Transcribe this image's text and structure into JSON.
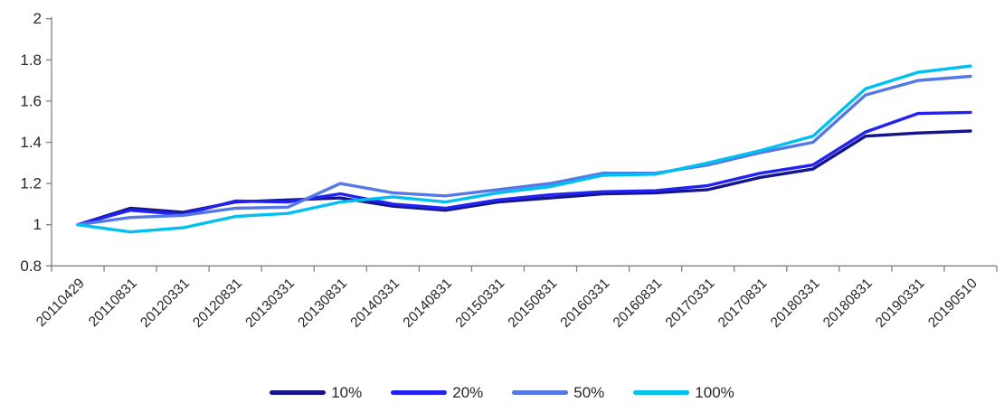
{
  "chart_data": {
    "type": "line",
    "title": "",
    "xlabel": "",
    "ylabel": "",
    "categories": [
      "20110429",
      "20110831",
      "20120331",
      "20120831",
      "20130331",
      "20130831",
      "20140331",
      "20140831",
      "20150331",
      "20150831",
      "20160331",
      "20160831",
      "20170331",
      "20170831",
      "20180331",
      "20180831",
      "20190331",
      "20190510"
    ],
    "series": [
      {
        "name": "10%",
        "color": "#14148B",
        "values": [
          1.0,
          1.08,
          1.06,
          1.11,
          1.12,
          1.13,
          1.09,
          1.07,
          1.11,
          1.13,
          1.15,
          1.155,
          1.17,
          1.23,
          1.27,
          1.43,
          1.445,
          1.455
        ]
      },
      {
        "name": "20%",
        "color": "#2222F0",
        "values": [
          1.0,
          1.07,
          1.05,
          1.115,
          1.11,
          1.15,
          1.1,
          1.08,
          1.12,
          1.145,
          1.16,
          1.165,
          1.19,
          1.25,
          1.29,
          1.45,
          1.54,
          1.545
        ]
      },
      {
        "name": "50%",
        "color": "#5578E6",
        "values": [
          1.0,
          1.035,
          1.045,
          1.08,
          1.085,
          1.2,
          1.155,
          1.14,
          1.17,
          1.2,
          1.25,
          1.25,
          1.29,
          1.35,
          1.4,
          1.63,
          1.7,
          1.72
        ]
      },
      {
        "name": "100%",
        "color": "#00C0F0",
        "values": [
          1.0,
          0.965,
          0.985,
          1.04,
          1.055,
          1.11,
          1.135,
          1.11,
          1.155,
          1.185,
          1.24,
          1.245,
          1.3,
          1.36,
          1.43,
          1.66,
          1.74,
          1.77
        ]
      }
    ],
    "ylim": [
      0.8,
      2.0
    ],
    "ytick_step": 0.2,
    "ytick_labels": [
      "0.8",
      "1",
      "1.2",
      "1.4",
      "1.6",
      "1.8",
      "2"
    ],
    "grid": "off",
    "legend_position": "bottom",
    "axis_color": "#808080",
    "text_color": "#262626",
    "background_color": "#FFFFFF"
  }
}
